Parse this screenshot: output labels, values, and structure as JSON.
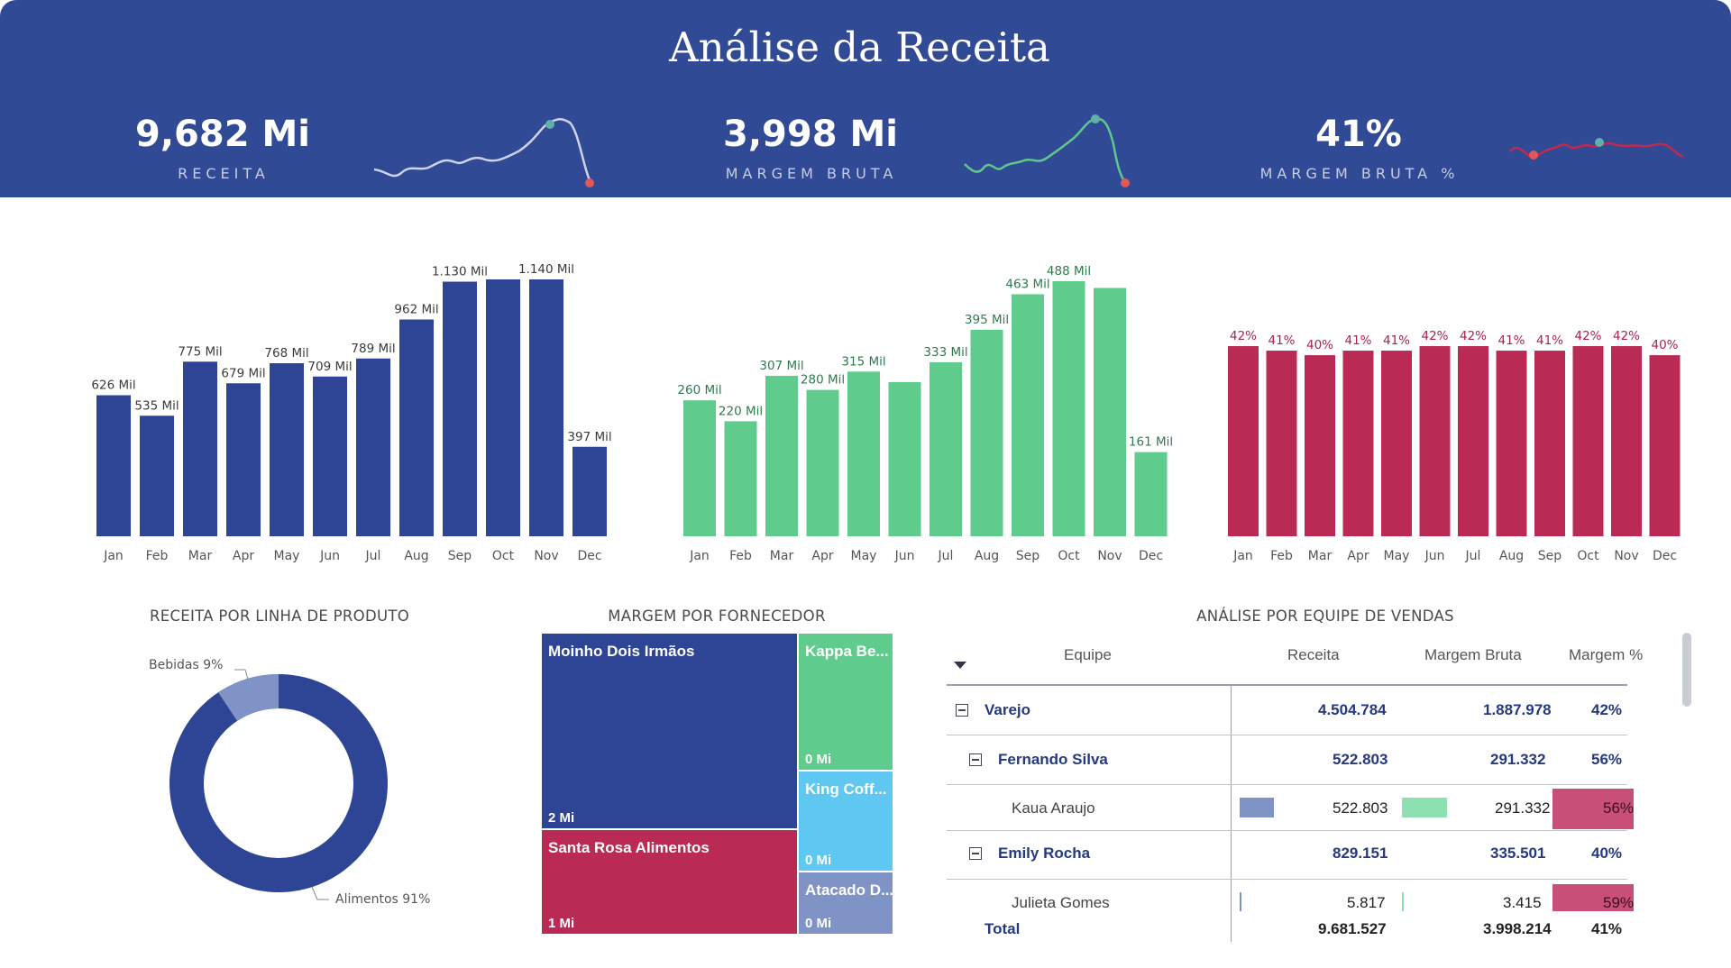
{
  "header": {
    "title": "Análise da Receita"
  },
  "kpis": [
    {
      "value": "9,682 Mi",
      "label": "RECEITA",
      "line_color": "#cdd3ea"
    },
    {
      "value": "3,998 Mi",
      "label": "MARGEM BRUTA",
      "line_color": "#5ec98a"
    },
    {
      "value": "41%",
      "label": "MARGEM BRUTA %",
      "line_color": "#c2294f"
    }
  ],
  "colors": {
    "header_bg": "#314A96",
    "blue": "#2E4596",
    "green": "#5FCB8C",
    "red": "#B92B54",
    "light_blue": "#8093C6"
  },
  "chart_data": [
    {
      "type": "bar",
      "categories": [
        "Jan",
        "Feb",
        "Mar",
        "Apr",
        "May",
        "Jun",
        "Jul",
        "Aug",
        "Sep",
        "Oct",
        "Nov",
        "Dec"
      ],
      "values": [
        626,
        535,
        775,
        679,
        768,
        709,
        789,
        962,
        1130,
        1140,
        1140,
        397
      ],
      "labels": [
        "626 Mil",
        "535 Mil",
        "775 Mil",
        "679 Mil",
        "768 Mil",
        "709 Mil",
        "789 Mil",
        "962 Mil",
        "1.130 Mil",
        "",
        "1.140 Mil",
        "397 Mil"
      ],
      "color": "#2E4596"
    },
    {
      "type": "bar",
      "categories": [
        "Jan",
        "Feb",
        "Mar",
        "Apr",
        "May",
        "Jun",
        "Jul",
        "Aug",
        "Sep",
        "Oct",
        "Nov",
        "Dec"
      ],
      "values": [
        260,
        220,
        307,
        280,
        315,
        295,
        333,
        395,
        463,
        488,
        475,
        161
      ],
      "labels": [
        "260 Mil",
        "220 Mil",
        "307 Mil",
        "280 Mil",
        "315 Mil",
        "",
        "333 Mil",
        "395 Mil",
        "463 Mil",
        "488 Mil",
        "",
        "161 Mil"
      ],
      "color": "#5FCB8C"
    },
    {
      "type": "bar",
      "categories": [
        "Jan",
        "Feb",
        "Mar",
        "Apr",
        "May",
        "Jun",
        "Jul",
        "Aug",
        "Sep",
        "Oct",
        "Nov",
        "Dec"
      ],
      "values": [
        42,
        41,
        40,
        41,
        41,
        42,
        42,
        41,
        41,
        42,
        42,
        40
      ],
      "labels": [
        "42%",
        "41%",
        "40%",
        "41%",
        "41%",
        "42%",
        "42%",
        "41%",
        "41%",
        "42%",
        "42%",
        "40%"
      ],
      "color": "#B92B54"
    },
    {
      "type": "pie",
      "title": "RECEITA POR LINHA DE PRODUTO",
      "categories": [
        "Alimentos",
        "Bebidas"
      ],
      "values": [
        91,
        9
      ],
      "labels": [
        "Alimentos 91%",
        "Bebidas 9%"
      ]
    },
    {
      "type": "treemap",
      "title": "MARGEM POR FORNECEDOR",
      "categories": [
        "Moinho Dois Irmãos",
        "Santa Rosa Alimentos",
        "Kappa Be...",
        "King Coff...",
        "Atacado D..."
      ],
      "value_labels": [
        "2 Mi",
        "1 Mi",
        "0 Mi",
        "0 Mi",
        "0 Mi"
      ]
    }
  ],
  "donut": {
    "title": "RECEITA POR LINHA DE PRODUTO",
    "label_bebidas": "Bebidas 9%",
    "label_alimentos": "Alimentos 91%"
  },
  "treemap": {
    "title": "MARGEM POR FORNECEDOR",
    "tiles": [
      {
        "name": "Moinho Dois Irmãos",
        "value": "2 Mi"
      },
      {
        "name": "Santa Rosa Alimentos",
        "value": "1 Mi"
      },
      {
        "name": "Kappa Be...",
        "value": "0 Mi"
      },
      {
        "name": "King Coff...",
        "value": "0 Mi"
      },
      {
        "name": "Atacado D...",
        "value": "0 Mi"
      }
    ]
  },
  "matrix": {
    "title": "ANÁLISE POR EQUIPE DE VENDAS",
    "columns": [
      "Equipe",
      "Receita",
      "Margem Bruta",
      "Margem %"
    ],
    "rows": [
      {
        "name": "Varejo",
        "receita": "4.504.784",
        "margem": "1.887.978",
        "pct": "42%"
      },
      {
        "name": "Fernando Silva",
        "receita": "522.803",
        "margem": "291.332",
        "pct": "56%"
      },
      {
        "name": "Kaua Araujo",
        "receita": "522.803",
        "margem": "291.332",
        "pct": "56%"
      },
      {
        "name": "Emily Rocha",
        "receita": "829.151",
        "margem": "335.501",
        "pct": "40%"
      },
      {
        "name": "Julieta Gomes",
        "receita": "5.817",
        "margem": "3.415",
        "pct": "59%"
      }
    ],
    "total": {
      "name": "Total",
      "receita": "9.681.527",
      "margem": "3.998.214",
      "pct": "41%"
    }
  }
}
